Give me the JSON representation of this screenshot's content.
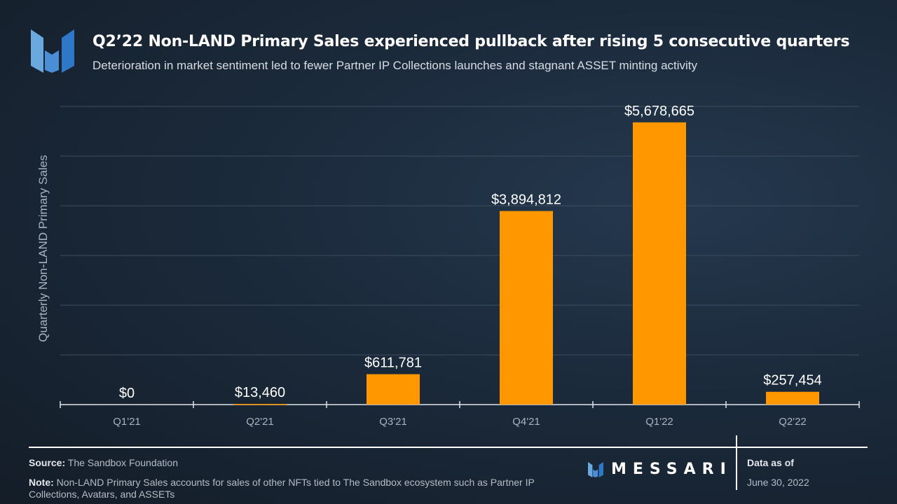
{
  "header": {
    "title": "Q2’22 Non-LAND Primary Sales experienced pullback after rising 5 consecutive quarters",
    "subtitle": "Deterioration in market sentiment led to fewer Partner IP Collections launches and stagnant ASSET minting activity"
  },
  "chart_data": {
    "type": "bar",
    "title": "Q2’22 Non-LAND Primary Sales experienced pullback after rising 5 consecutive quarters",
    "xlabel": "",
    "ylabel": "Quarterly Non-LAND  Primary Sales",
    "categories": [
      "Q1'21",
      "Q2'21",
      "Q3'21",
      "Q4'21",
      "Q1'22",
      "Q2'22"
    ],
    "values": [
      0,
      13460,
      611781,
      3894812,
      5678665,
      257454
    ],
    "data_labels": [
      "$0",
      "$13,460",
      "$611,781",
      "$3,894,812",
      "$5,678,665",
      "$257,454"
    ],
    "ylim": [
      0,
      6000000
    ],
    "grid": true,
    "bar_color": "#ff9800"
  },
  "footer": {
    "source_label": "Source:",
    "source": "The Sandbox Foundation",
    "note_label": "Note:",
    "note": "Non-LAND Primary Sales accounts for sales of other NFTs tied to The Sandbox ecosystem such as Partner IP Collections, Avatars, and ASSETs",
    "brand": "MESSARI",
    "data_as_of_label": "Data as of",
    "data_as_of": "June 30, 2022"
  }
}
